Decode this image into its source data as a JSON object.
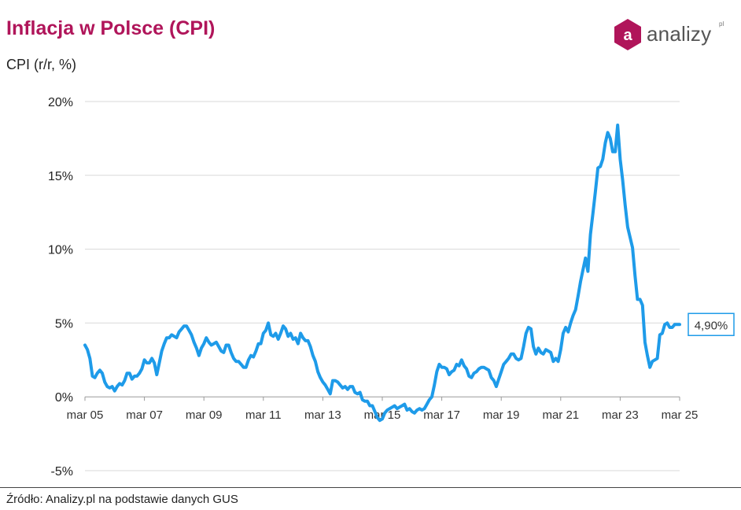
{
  "header": {
    "title": "Inflacja w Polsce (CPI)",
    "subtitle": "CPI (r/r, %)"
  },
  "logo": {
    "letter": "a",
    "name": "analizy",
    "suffix": "pl",
    "color": "#b0155a"
  },
  "footer": {
    "source": "Źródło: Analizy.pl na podstawie danych GUS"
  },
  "chart_data": {
    "type": "line",
    "title": "Inflacja w Polsce (CPI)",
    "ylabel": "CPI (r/r, %)",
    "ylim": [
      -5,
      20
    ],
    "grid": true,
    "yticks": [
      "20%",
      "15%",
      "10%",
      "5%",
      "0%",
      "-5%"
    ],
    "ytick_values": [
      20,
      15,
      10,
      5,
      0,
      -5
    ],
    "xticks": [
      "mar 05",
      "mar 07",
      "mar 09",
      "mar 11",
      "mar 13",
      "mar 15",
      "mar 17",
      "mar 19",
      "mar 21",
      "mar 23",
      "mar 25"
    ],
    "xtick_values": [
      2005.167,
      2007.167,
      2009.167,
      2011.167,
      2013.167,
      2015.167,
      2017.167,
      2019.167,
      2021.167,
      2023.167,
      2025.167
    ],
    "line_color": "#1e9be9",
    "last_value_label": "4,90%",
    "series": [
      {
        "points": [
          [
            2005.167,
            3.5
          ],
          [
            2005.25,
            3.2
          ],
          [
            2005.333,
            2.6
          ],
          [
            2005.417,
            1.4
          ],
          [
            2005.5,
            1.3
          ],
          [
            2005.583,
            1.6
          ],
          [
            2005.667,
            1.8
          ],
          [
            2005.75,
            1.6
          ],
          [
            2005.833,
            1.0
          ],
          [
            2005.917,
            0.7
          ],
          [
            2006.0,
            0.6
          ],
          [
            2006.083,
            0.7
          ],
          [
            2006.167,
            0.4
          ],
          [
            2006.25,
            0.7
          ],
          [
            2006.333,
            0.9
          ],
          [
            2006.417,
            0.8
          ],
          [
            2006.5,
            1.1
          ],
          [
            2006.583,
            1.6
          ],
          [
            2006.667,
            1.6
          ],
          [
            2006.75,
            1.2
          ],
          [
            2006.833,
            1.4
          ],
          [
            2006.917,
            1.4
          ],
          [
            2007.0,
            1.6
          ],
          [
            2007.083,
            1.9
          ],
          [
            2007.167,
            2.5
          ],
          [
            2007.25,
            2.3
          ],
          [
            2007.333,
            2.3
          ],
          [
            2007.417,
            2.6
          ],
          [
            2007.5,
            2.3
          ],
          [
            2007.583,
            1.5
          ],
          [
            2007.667,
            2.3
          ],
          [
            2007.75,
            3.1
          ],
          [
            2007.833,
            3.6
          ],
          [
            2007.917,
            4.0
          ],
          [
            2008.0,
            4.0
          ],
          [
            2008.083,
            4.2
          ],
          [
            2008.167,
            4.1
          ],
          [
            2008.25,
            4.0
          ],
          [
            2008.333,
            4.4
          ],
          [
            2008.417,
            4.6
          ],
          [
            2008.5,
            4.8
          ],
          [
            2008.583,
            4.8
          ],
          [
            2008.667,
            4.5
          ],
          [
            2008.75,
            4.2
          ],
          [
            2008.833,
            3.7
          ],
          [
            2008.917,
            3.3
          ],
          [
            2009.0,
            2.8
          ],
          [
            2009.083,
            3.3
          ],
          [
            2009.167,
            3.6
          ],
          [
            2009.25,
            4.0
          ],
          [
            2009.333,
            3.7
          ],
          [
            2009.417,
            3.5
          ],
          [
            2009.5,
            3.6
          ],
          [
            2009.583,
            3.7
          ],
          [
            2009.667,
            3.4
          ],
          [
            2009.75,
            3.1
          ],
          [
            2009.833,
            3.0
          ],
          [
            2009.917,
            3.5
          ],
          [
            2010.0,
            3.5
          ],
          [
            2010.083,
            3.0
          ],
          [
            2010.167,
            2.6
          ],
          [
            2010.25,
            2.4
          ],
          [
            2010.333,
            2.4
          ],
          [
            2010.417,
            2.2
          ],
          [
            2010.5,
            2.0
          ],
          [
            2010.583,
            2.0
          ],
          [
            2010.667,
            2.5
          ],
          [
            2010.75,
            2.8
          ],
          [
            2010.833,
            2.7
          ],
          [
            2010.917,
            3.1
          ],
          [
            2011.0,
            3.6
          ],
          [
            2011.083,
            3.6
          ],
          [
            2011.167,
            4.3
          ],
          [
            2011.25,
            4.5
          ],
          [
            2011.333,
            5.0
          ],
          [
            2011.417,
            4.2
          ],
          [
            2011.5,
            4.1
          ],
          [
            2011.583,
            4.3
          ],
          [
            2011.667,
            3.9
          ],
          [
            2011.75,
            4.3
          ],
          [
            2011.833,
            4.8
          ],
          [
            2011.917,
            4.6
          ],
          [
            2012.0,
            4.1
          ],
          [
            2012.083,
            4.3
          ],
          [
            2012.167,
            3.9
          ],
          [
            2012.25,
            4.0
          ],
          [
            2012.333,
            3.6
          ],
          [
            2012.417,
            4.3
          ],
          [
            2012.5,
            4.0
          ],
          [
            2012.583,
            3.8
          ],
          [
            2012.667,
            3.8
          ],
          [
            2012.75,
            3.4
          ],
          [
            2012.833,
            2.8
          ],
          [
            2012.917,
            2.4
          ],
          [
            2013.0,
            1.7
          ],
          [
            2013.083,
            1.3
          ],
          [
            2013.167,
            1.0
          ],
          [
            2013.25,
            0.8
          ],
          [
            2013.333,
            0.5
          ],
          [
            2013.417,
            0.2
          ],
          [
            2013.5,
            1.1
          ],
          [
            2013.583,
            1.1
          ],
          [
            2013.667,
            1.0
          ],
          [
            2013.75,
            0.8
          ],
          [
            2013.833,
            0.6
          ],
          [
            2013.917,
            0.7
          ],
          [
            2014.0,
            0.5
          ],
          [
            2014.083,
            0.7
          ],
          [
            2014.167,
            0.7
          ],
          [
            2014.25,
            0.3
          ],
          [
            2014.333,
            0.2
          ],
          [
            2014.417,
            0.3
          ],
          [
            2014.5,
            -0.2
          ],
          [
            2014.583,
            -0.3
          ],
          [
            2014.667,
            -0.3
          ],
          [
            2014.75,
            -0.6
          ],
          [
            2014.833,
            -0.6
          ],
          [
            2014.917,
            -1.0
          ],
          [
            2015.0,
            -1.4
          ],
          [
            2015.083,
            -1.6
          ],
          [
            2015.167,
            -1.5
          ],
          [
            2015.25,
            -1.1
          ],
          [
            2015.333,
            -0.9
          ],
          [
            2015.417,
            -0.8
          ],
          [
            2015.5,
            -0.7
          ],
          [
            2015.583,
            -0.6
          ],
          [
            2015.667,
            -0.8
          ],
          [
            2015.75,
            -0.7
          ],
          [
            2015.833,
            -0.6
          ],
          [
            2015.917,
            -0.5
          ],
          [
            2016.0,
            -0.9
          ],
          [
            2016.083,
            -0.8
          ],
          [
            2016.167,
            -1.0
          ],
          [
            2016.25,
            -1.1
          ],
          [
            2016.333,
            -0.9
          ],
          [
            2016.417,
            -0.8
          ],
          [
            2016.5,
            -0.9
          ],
          [
            2016.583,
            -0.8
          ],
          [
            2016.667,
            -0.5
          ],
          [
            2016.75,
            -0.2
          ],
          [
            2016.833,
            0.0
          ],
          [
            2016.917,
            0.8
          ],
          [
            2017.0,
            1.7
          ],
          [
            2017.083,
            2.2
          ],
          [
            2017.167,
            2.0
          ],
          [
            2017.25,
            2.0
          ],
          [
            2017.333,
            1.9
          ],
          [
            2017.417,
            1.5
          ],
          [
            2017.5,
            1.7
          ],
          [
            2017.583,
            1.8
          ],
          [
            2017.667,
            2.2
          ],
          [
            2017.75,
            2.1
          ],
          [
            2017.833,
            2.5
          ],
          [
            2017.917,
            2.1
          ],
          [
            2018.0,
            1.9
          ],
          [
            2018.083,
            1.4
          ],
          [
            2018.167,
            1.3
          ],
          [
            2018.25,
            1.6
          ],
          [
            2018.333,
            1.7
          ],
          [
            2018.417,
            1.9
          ],
          [
            2018.5,
            2.0
          ],
          [
            2018.583,
            2.0
          ],
          [
            2018.667,
            1.9
          ],
          [
            2018.75,
            1.8
          ],
          [
            2018.833,
            1.3
          ],
          [
            2018.917,
            1.1
          ],
          [
            2019.0,
            0.7
          ],
          [
            2019.083,
            1.2
          ],
          [
            2019.167,
            1.7
          ],
          [
            2019.25,
            2.2
          ],
          [
            2019.333,
            2.4
          ],
          [
            2019.417,
            2.6
          ],
          [
            2019.5,
            2.9
          ],
          [
            2019.583,
            2.9
          ],
          [
            2019.667,
            2.6
          ],
          [
            2019.75,
            2.5
          ],
          [
            2019.833,
            2.6
          ],
          [
            2019.917,
            3.4
          ],
          [
            2020.0,
            4.3
          ],
          [
            2020.083,
            4.7
          ],
          [
            2020.167,
            4.6
          ],
          [
            2020.25,
            3.4
          ],
          [
            2020.333,
            2.9
          ],
          [
            2020.417,
            3.3
          ],
          [
            2020.5,
            3.0
          ],
          [
            2020.583,
            2.9
          ],
          [
            2020.667,
            3.2
          ],
          [
            2020.75,
            3.1
          ],
          [
            2020.833,
            3.0
          ],
          [
            2020.917,
            2.4
          ],
          [
            2021.0,
            2.6
          ],
          [
            2021.083,
            2.4
          ],
          [
            2021.167,
            3.2
          ],
          [
            2021.25,
            4.3
          ],
          [
            2021.333,
            4.7
          ],
          [
            2021.417,
            4.4
          ],
          [
            2021.5,
            5.0
          ],
          [
            2021.583,
            5.5
          ],
          [
            2021.667,
            5.9
          ],
          [
            2021.75,
            6.8
          ],
          [
            2021.833,
            7.8
          ],
          [
            2021.917,
            8.6
          ],
          [
            2022.0,
            9.4
          ],
          [
            2022.083,
            8.5
          ],
          [
            2022.167,
            11.0
          ],
          [
            2022.25,
            12.4
          ],
          [
            2022.333,
            13.9
          ],
          [
            2022.417,
            15.5
          ],
          [
            2022.5,
            15.6
          ],
          [
            2022.583,
            16.1
          ],
          [
            2022.667,
            17.2
          ],
          [
            2022.75,
            17.9
          ],
          [
            2022.833,
            17.5
          ],
          [
            2022.917,
            16.6
          ],
          [
            2023.0,
            16.6
          ],
          [
            2023.083,
            18.4
          ],
          [
            2023.167,
            16.1
          ],
          [
            2023.25,
            14.7
          ],
          [
            2023.333,
            13.0
          ],
          [
            2023.417,
            11.5
          ],
          [
            2023.5,
            10.8
          ],
          [
            2023.583,
            10.1
          ],
          [
            2023.667,
            8.2
          ],
          [
            2023.75,
            6.6
          ],
          [
            2023.833,
            6.6
          ],
          [
            2023.917,
            6.2
          ],
          [
            2024.0,
            3.7
          ],
          [
            2024.083,
            2.8
          ],
          [
            2024.167,
            2.0
          ],
          [
            2024.25,
            2.4
          ],
          [
            2024.333,
            2.5
          ],
          [
            2024.417,
            2.6
          ],
          [
            2024.5,
            4.2
          ],
          [
            2024.583,
            4.3
          ],
          [
            2024.667,
            4.9
          ],
          [
            2024.75,
            5.0
          ],
          [
            2024.833,
            4.7
          ],
          [
            2024.917,
            4.7
          ],
          [
            2025.0,
            4.9
          ],
          [
            2025.083,
            4.9
          ],
          [
            2025.167,
            4.9
          ]
        ]
      }
    ]
  }
}
